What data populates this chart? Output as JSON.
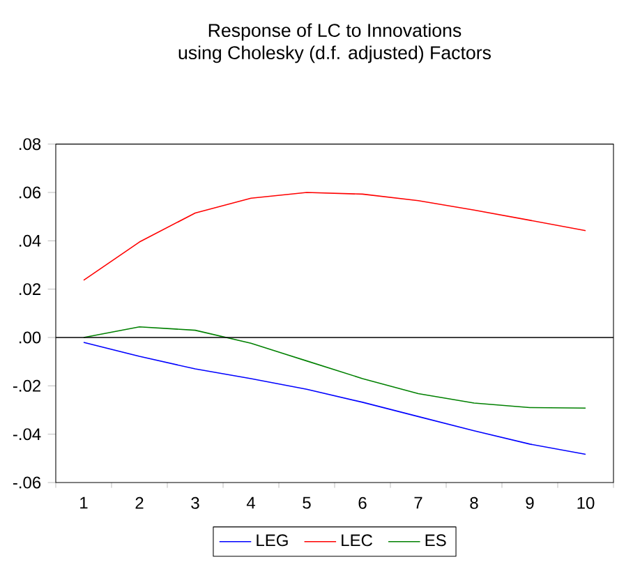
{
  "chart_data": {
    "type": "line",
    "title": "Response of LC to Innovations",
    "subtitle": "using Cholesky (d.f. adjusted) Factors",
    "categories": [
      "1",
      "2",
      "3",
      "4",
      "5",
      "6",
      "7",
      "8",
      "9",
      "10"
    ],
    "series": [
      {
        "name": "LEG",
        "color": "#0000ff",
        "values": [
          -0.002,
          -0.0078,
          -0.013,
          -0.017,
          -0.0214,
          -0.0268,
          -0.0327,
          -0.0386,
          -0.0441,
          -0.0483
        ]
      },
      {
        "name": "LEC",
        "color": "#ff0000",
        "values": [
          0.0237,
          0.0395,
          0.0515,
          0.0576,
          0.06,
          0.0593,
          0.0566,
          0.0527,
          0.0485,
          0.0442
        ]
      },
      {
        "name": "ES",
        "color": "#008000",
        "values": [
          0.0,
          0.0044,
          0.003,
          -0.0024,
          -0.0097,
          -0.017,
          -0.0232,
          -0.0271,
          -0.029,
          -0.0292
        ]
      }
    ],
    "ylim": [
      -0.06,
      0.08
    ],
    "yticks": [
      {
        "value": -0.06,
        "label": "-.06"
      },
      {
        "value": -0.04,
        "label": "-.04"
      },
      {
        "value": -0.02,
        "label": "-.02"
      },
      {
        "value": 0,
        "label": ".00"
      },
      {
        "value": 0.02,
        "label": ".02"
      },
      {
        "value": 0.04,
        "label": ".04"
      },
      {
        "value": 0.06,
        "label": ".06"
      },
      {
        "value": 0.08,
        "label": ".08"
      }
    ],
    "ref_lines": [
      {
        "axis": "y",
        "value": 0,
        "color": "#000000"
      }
    ],
    "grid": false,
    "legend": "bottom",
    "marker": "none",
    "line_style": "solid"
  }
}
